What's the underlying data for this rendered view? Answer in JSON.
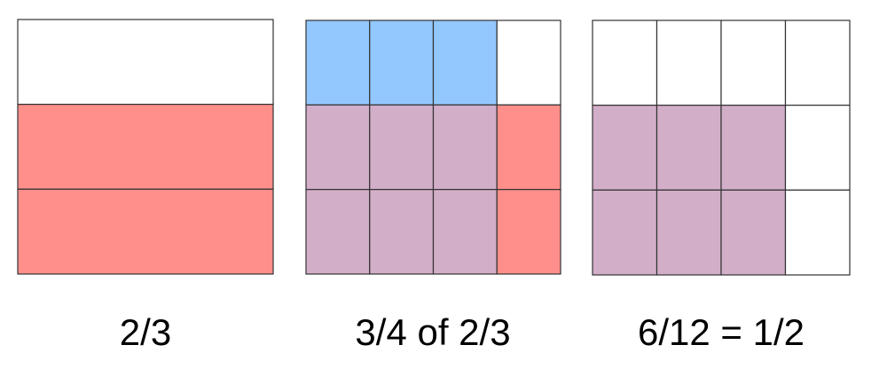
{
  "colors": {
    "white": "#ffffff",
    "red": "#fe8f8a",
    "blue": "#93c8fe",
    "purple": "#d3aec9",
    "line": "#333333"
  },
  "grids": [
    {
      "label": "2/3",
      "rows": 3,
      "cols": 1,
      "cells": [
        [
          "white"
        ],
        [
          "red"
        ],
        [
          "red"
        ]
      ]
    },
    {
      "label": "3/4 of 2/3",
      "rows": 3,
      "cols": 4,
      "cells": [
        [
          "blue",
          "blue",
          "blue",
          "white"
        ],
        [
          "purple",
          "purple",
          "purple",
          "red"
        ],
        [
          "purple",
          "purple",
          "purple",
          "red"
        ]
      ]
    },
    {
      "label": "6/12 = 1/2",
      "rows": 3,
      "cols": 4,
      "cells": [
        [
          "white",
          "white",
          "white",
          "white"
        ],
        [
          "purple",
          "purple",
          "purple",
          "white"
        ],
        [
          "purple",
          "purple",
          "purple",
          "white"
        ]
      ]
    }
  ]
}
